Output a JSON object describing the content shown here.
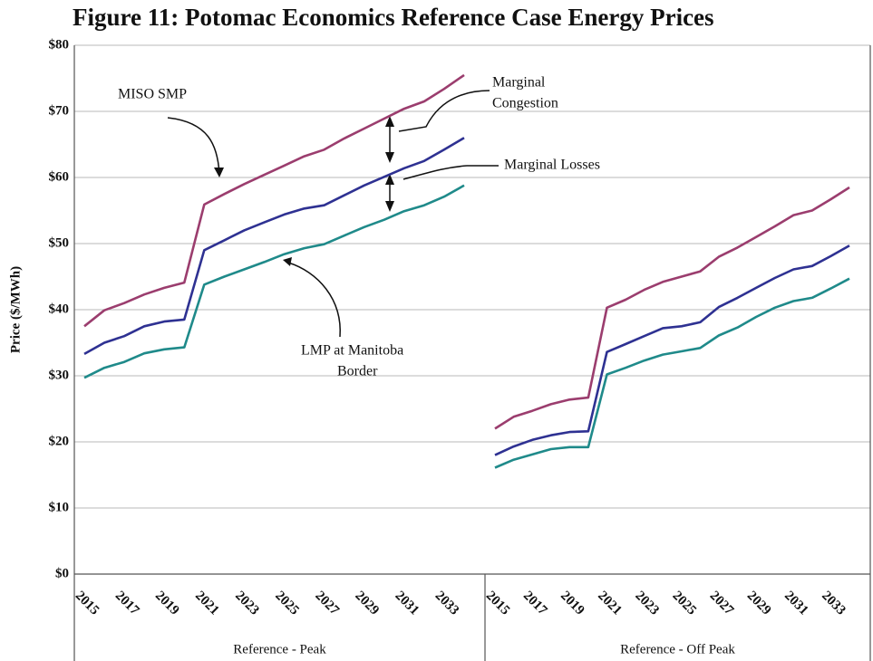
{
  "chart_data": {
    "type": "line",
    "title": "Figure 11:  Potomac Economics Reference Case Energy Prices",
    "ylabel": "Price ($/MWh)",
    "ylim": [
      0,
      80
    ],
    "yticks": [
      {
        "value": 0,
        "label": "$0"
      },
      {
        "value": 10,
        "label": "$10"
      },
      {
        "value": 20,
        "label": "$20"
      },
      {
        "value": 30,
        "label": "$30"
      },
      {
        "value": 40,
        "label": "$40"
      },
      {
        "value": 50,
        "label": "$50"
      },
      {
        "value": 60,
        "label": "$60"
      },
      {
        "value": 70,
        "label": "$70"
      },
      {
        "value": 80,
        "label": "$80"
      }
    ],
    "grid": true,
    "panels": [
      {
        "xlabel": "Reference - Peak",
        "categories": [
          "2015",
          null,
          "2017",
          null,
          "2019",
          null,
          "2021",
          null,
          "2023",
          null,
          "2025",
          null,
          "2027",
          null,
          "2029",
          null,
          "2031",
          null,
          "2033",
          null
        ],
        "series": [
          {
            "color": "#9b3d6e",
            "values": [
              37.5,
              39.9,
              41,
              42.3,
              43.3,
              44.1,
              55.9,
              57.5,
              59,
              60.4,
              61.8,
              63.2,
              64.2,
              65.9,
              67.4,
              68.9,
              70.4,
              71.5,
              73.4,
              75.5
            ]
          },
          {
            "color": "#2e3192",
            "values": [
              33.3,
              35,
              36,
              37.5,
              38.2,
              38.5,
              49,
              50.5,
              52,
              53.2,
              54.4,
              55.3,
              55.8,
              57.3,
              58.8,
              60.1,
              61.4,
              62.5,
              64.2,
              66
            ]
          },
          {
            "color": "#1f8a8a",
            "values": [
              29.7,
              31.2,
              32.1,
              33.4,
              34,
              34.3,
              43.8,
              45,
              46.1,
              47.2,
              48.4,
              49.3,
              49.9,
              51.2,
              52.5,
              53.6,
              54.9,
              55.8,
              57.1,
              58.8
            ]
          }
        ]
      },
      {
        "xlabel": "Reference - Off Peak",
        "categories": [
          "2015",
          null,
          "2017",
          null,
          "2019",
          null,
          "2021",
          null,
          "2023",
          null,
          "2025",
          null,
          "2027",
          null,
          "2029",
          null,
          "2031",
          null,
          "2033",
          null
        ],
        "series": [
          {
            "color": "#9b3d6e",
            "values": [
              22,
              23.8,
              24.7,
              25.7,
              26.4,
              26.7,
              40.3,
              41.5,
              43,
              44.2,
              45,
              45.8,
              48,
              49.4,
              51,
              52.6,
              54.3,
              55,
              56.7,
              58.5
            ]
          },
          {
            "color": "#2e3192",
            "values": [
              18,
              19.3,
              20.3,
              21,
              21.5,
              21.6,
              33.6,
              34.8,
              36,
              37.2,
              37.5,
              38.1,
              40.4,
              41.8,
              43.3,
              44.8,
              46.1,
              46.6,
              48.1,
              49.7
            ]
          },
          {
            "color": "#1f8a8a",
            "values": [
              16.1,
              17.3,
              18.1,
              18.9,
              19.2,
              19.2,
              30.2,
              31.2,
              32.3,
              33.2,
              33.7,
              34.2,
              36.1,
              37.3,
              38.9,
              40.3,
              41.3,
              41.8,
              43.2,
              44.7
            ]
          }
        ]
      }
    ],
    "annotations": [
      {
        "lines": [
          "MISO SMP"
        ]
      },
      {
        "lines": [
          "Marginal",
          "Congestion"
        ]
      },
      {
        "lines": [
          "Marginal Losses"
        ]
      },
      {
        "lines": [
          "LMP at Manitoba",
          "Border"
        ]
      }
    ]
  }
}
